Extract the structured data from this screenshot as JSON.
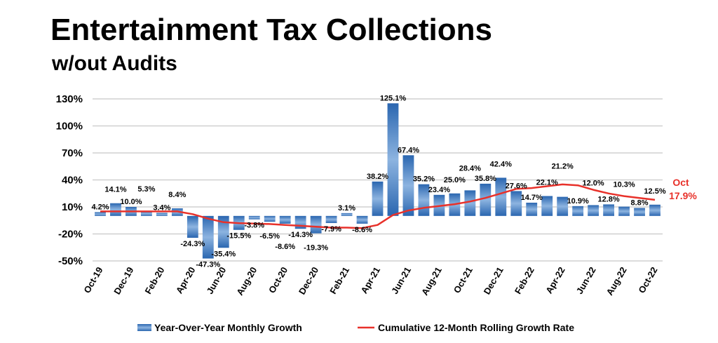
{
  "chart_data": {
    "type": "bar",
    "title": "Entertainment Tax Collections",
    "subtitle": "w/out Audits",
    "categories": [
      "Oct-19",
      "Nov-19",
      "Dec-19",
      "Jan-20",
      "Feb-20",
      "Mar-20",
      "Apr-20",
      "May-20",
      "Jun-20",
      "Jul-20",
      "Aug-20",
      "Sep-20",
      "Oct-20",
      "Nov-20",
      "Dec-20",
      "Jan-21",
      "Feb-21",
      "Mar-21",
      "Apr-21",
      "May-21",
      "Jun-21",
      "Jul-21",
      "Aug-21",
      "Sep-21",
      "Oct-21",
      "Nov-21",
      "Dec-21",
      "Jan-22",
      "Feb-22",
      "Mar-22",
      "Apr-22",
      "May-22",
      "Jun-22",
      "Jul-22",
      "Aug-22",
      "Sep-22",
      "Oct-22"
    ],
    "series": [
      {
        "name": "Year-Over-Year Monthly Growth",
        "type": "bar",
        "color": "#2f6db5",
        "values": [
          4.2,
          14.1,
          10.0,
          5.3,
          3.4,
          8.4,
          -24.3,
          -47.3,
          -35.4,
          -15.5,
          -3.8,
          -6.5,
          -8.6,
          -14.3,
          -19.3,
          -7.9,
          3.1,
          -8.6,
          38.2,
          125.1,
          67.4,
          35.2,
          23.4,
          25.0,
          28.4,
          35.8,
          42.4,
          27.6,
          14.7,
          22.1,
          21.2,
          10.9,
          12.0,
          12.8,
          10.3,
          8.8,
          12.5
        ],
        "labels": [
          "4.2%",
          "14.1%",
          "10.0%",
          "5.3%",
          "3.4%",
          "8.4%",
          "-24.3%",
          "-47.3%",
          "-35.4%",
          "-15.5%",
          "-3.8%",
          "-6.5%",
          "-8.6%",
          "-14.3%",
          "-19.3%",
          "-7.9%",
          "3.1%",
          "-8.6%",
          "38.2%",
          "125.1%",
          "67.4%",
          "35.2%",
          "23.4%",
          "25.0%",
          "28.4%",
          "35.8%",
          "42.4%",
          "27.6%",
          "14.7%",
          "22.1%",
          "21.2%",
          "10.9%",
          "12.0%",
          "12.8%",
          "10.3%",
          "8.8%",
          "12.5%"
        ]
      },
      {
        "name": "Cumulative 12-Month Rolling Growth Rate",
        "type": "line",
        "color": "#e8312a",
        "values": [
          5,
          5,
          5,
          5,
          5,
          5,
          2,
          -3,
          -7,
          -8,
          -8.5,
          -9,
          -10,
          -11,
          -12,
          -13,
          -13,
          -13.5,
          -10,
          1,
          6,
          9,
          11,
          13,
          16,
          20,
          25,
          30,
          31,
          33,
          35,
          34,
          29,
          25,
          22,
          20,
          17.9
        ]
      }
    ],
    "ylim": [
      -50,
      130
    ],
    "yticks": [
      -50,
      -20,
      10,
      40,
      70,
      100,
      130
    ],
    "ytick_labels": [
      "-50%",
      "-20%",
      "10%",
      "40%",
      "70%",
      "100%",
      "130%"
    ],
    "xtick_labels": [
      "Oct-19",
      "Dec-19",
      "Feb-20",
      "Apr-20",
      "Jun-20",
      "Aug-20",
      "Oct-20",
      "Dec-20",
      "Feb-21",
      "Apr-21",
      "Jun-21",
      "Aug-21",
      "Oct-21",
      "Dec-21",
      "Feb-22",
      "Apr-22",
      "Jun-22",
      "Aug-22",
      "Oct-22"
    ],
    "grid": true,
    "legend_position": "bottom",
    "annotation": {
      "line1": "Oct",
      "line2": "17.9%"
    }
  }
}
